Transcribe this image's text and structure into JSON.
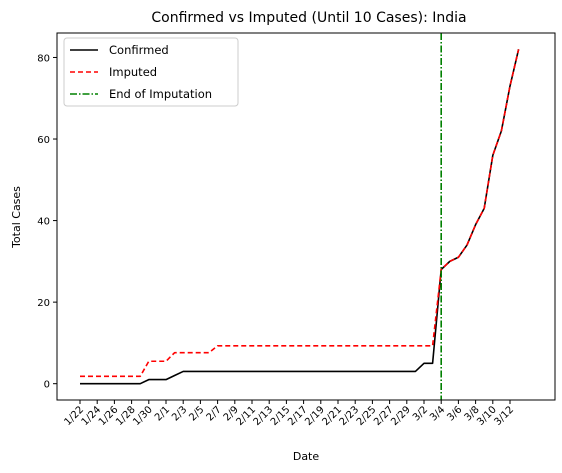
{
  "chart_data": {
    "type": "line",
    "title": "Confirmed vs Imputed (Until 10 Cases): India",
    "xlabel": "Date",
    "ylabel": "Total Cases",
    "ylim": [
      -4,
      86
    ],
    "yticks": [
      0,
      20,
      40,
      60,
      80
    ],
    "dates": [
      "1/22",
      "1/23",
      "1/24",
      "1/25",
      "1/26",
      "1/27",
      "1/28",
      "1/29",
      "1/30",
      "1/31",
      "2/1",
      "2/2",
      "2/3",
      "2/4",
      "2/5",
      "2/6",
      "2/7",
      "2/8",
      "2/9",
      "2/10",
      "2/11",
      "2/12",
      "2/13",
      "2/14",
      "2/15",
      "2/16",
      "2/17",
      "2/18",
      "2/19",
      "2/20",
      "2/21",
      "2/22",
      "2/23",
      "2/24",
      "2/25",
      "2/26",
      "2/27",
      "2/28",
      "2/29",
      "3/1",
      "3/2",
      "3/3",
      "3/4",
      "3/5",
      "3/6",
      "3/7",
      "3/8",
      "3/9",
      "3/10",
      "3/11",
      "3/12",
      "3/13"
    ],
    "xtick_labels": [
      "1/22",
      "1/24",
      "1/26",
      "1/28",
      "1/30",
      "2/1",
      "2/3",
      "2/5",
      "2/7",
      "2/9",
      "2/11",
      "2/13",
      "2/15",
      "2/17",
      "2/19",
      "2/21",
      "2/23",
      "2/25",
      "2/27",
      "2/29",
      "3/2",
      "3/4",
      "3/6",
      "3/8",
      "3/10",
      "3/12"
    ],
    "series": [
      {
        "name": "Confirmed",
        "color": "#000000",
        "style": "solid",
        "values": [
          0,
          0,
          0,
          0,
          0,
          0,
          0,
          0,
          1,
          1,
          1,
          2,
          3,
          3,
          3,
          3,
          3,
          3,
          3,
          3,
          3,
          3,
          3,
          3,
          3,
          3,
          3,
          3,
          3,
          3,
          3,
          3,
          3,
          3,
          3,
          3,
          3,
          3,
          3,
          3,
          5,
          5,
          28,
          30,
          31,
          34,
          39,
          43,
          56,
          62,
          73,
          82
        ]
      },
      {
        "name": "Imputed",
        "color": "#ff0000",
        "style": "dashed",
        "values": [
          1.8,
          1.8,
          1.8,
          1.8,
          1.8,
          1.8,
          1.8,
          1.8,
          5.5,
          5.5,
          5.5,
          7.6,
          7.6,
          7.6,
          7.6,
          7.6,
          9.3,
          9.3,
          9.3,
          9.3,
          9.3,
          9.3,
          9.3,
          9.3,
          9.3,
          9.3,
          9.3,
          9.3,
          9.3,
          9.3,
          9.3,
          9.3,
          9.3,
          9.3,
          9.3,
          9.3,
          9.3,
          9.3,
          9.3,
          9.3,
          9.3,
          9.3,
          28,
          30,
          31,
          34,
          39,
          43,
          56,
          62,
          73,
          82
        ]
      }
    ],
    "vline": {
      "name": "End of Imputation",
      "x": "3/4",
      "color": "#008000",
      "style": "dashdot"
    },
    "legend": "top-left",
    "grid": false
  }
}
